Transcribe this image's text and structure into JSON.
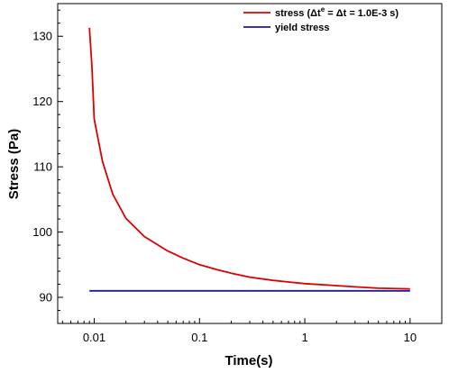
{
  "chart_data": {
    "type": "line",
    "xlabel": "Time(s)",
    "ylabel": "Stress (Pa)",
    "xscale": "log",
    "xlim": [
      0.0045,
      20
    ],
    "ylim": [
      86,
      135
    ],
    "grid": false,
    "legend_position": "top-right",
    "x_ticks": [
      {
        "value": 0.01,
        "label": "0.01"
      },
      {
        "value": 0.1,
        "label": "0.1"
      },
      {
        "value": 1,
        "label": "1"
      },
      {
        "value": 10,
        "label": "10"
      }
    ],
    "y_ticks": [
      {
        "value": 90,
        "label": "90"
      },
      {
        "value": 100,
        "label": "100"
      },
      {
        "value": 110,
        "label": "110"
      },
      {
        "value": 120,
        "label": "120"
      },
      {
        "value": 130,
        "label": "130"
      }
    ],
    "series": [
      {
        "name": "stress (Δt^e = Δt = 1.0E-3 s)",
        "legend_parts": {
          "pre": "stress (Δt",
          "sup": "e",
          "post": " = Δt = 1.0E-3 s)"
        },
        "color": "#dd0000",
        "x": [
          0.009,
          0.0095,
          0.01,
          0.012,
          0.015,
          0.02,
          0.03,
          0.05,
          0.07,
          0.1,
          0.15,
          0.2,
          0.3,
          0.5,
          0.7,
          1,
          2,
          3,
          5,
          10
        ],
        "y": [
          131.3,
          125.5,
          117.3,
          110.8,
          105.8,
          102.1,
          99.3,
          97.1,
          96.0,
          95.0,
          94.2,
          93.7,
          93.1,
          92.6,
          92.35,
          92.1,
          91.8,
          91.6,
          91.4,
          91.3
        ]
      },
      {
        "name": "yield stress",
        "color": "#1a1aa8",
        "x": [
          0.009,
          10
        ],
        "y": [
          91.0,
          91.0
        ]
      }
    ]
  }
}
